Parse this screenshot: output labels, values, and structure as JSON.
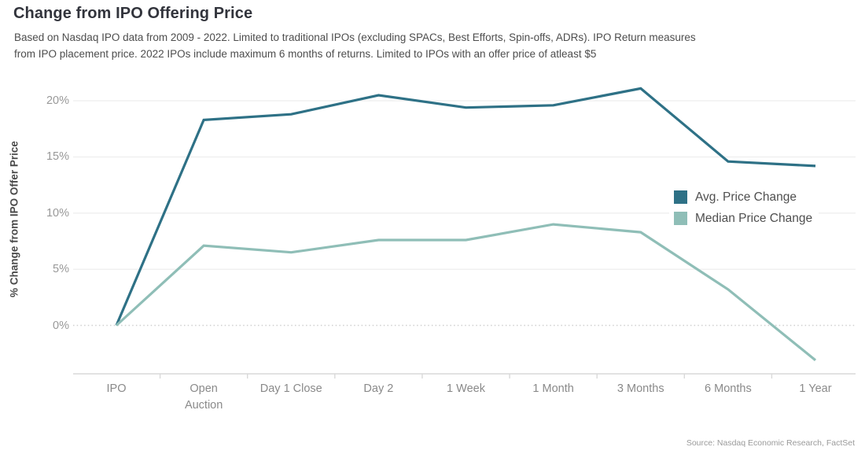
{
  "header": {
    "title": "Change from IPO Offering Price",
    "subtitle_lines": [
      "Based on Nasdaq IPO data from 2009 - 2022. Limited to traditional IPOs (excluding SPACs, Best Efforts, Spin-offs, ADRs). IPO Return measures",
      "from IPO placement price. 2022 IPOs include maximum 6 months of returns. Limited to IPOs with an offer price of atleast $5"
    ]
  },
  "source": "Source: Nasdaq Economic Research, FactSet",
  "colors": {
    "grid": "#efefef",
    "zero_line": "#cfcfcf",
    "axis": "#d9d9d9",
    "avg_line": "#2e7186",
    "median_line": "#8fbeb7"
  },
  "chart_data": {
    "type": "line",
    "title": "Change from IPO Offering Price",
    "ylabel": "% Change from IPO Offer Price",
    "xlabel": "",
    "categories": [
      "IPO",
      "Open Auction",
      "Day 1 Close",
      "Day 2",
      "1 Week",
      "1 Month",
      "3 Months",
      "6 Months",
      "1 Year"
    ],
    "categories_display": [
      "IPO",
      "Open\nAuction",
      "Day 1 Close",
      "Day 2",
      "1 Week",
      "1 Month",
      "3 Months",
      "6 Months",
      "1 Year"
    ],
    "series": [
      {
        "name": "Avg. Price Change",
        "color": "#2e7186",
        "values": [
          0,
          18.3,
          18.8,
          20.5,
          19.4,
          19.6,
          21.1,
          14.6,
          14.2
        ]
      },
      {
        "name": "Median Price Change",
        "color": "#8fbeb7",
        "values": [
          0,
          7.1,
          6.5,
          7.6,
          7.6,
          9.0,
          8.3,
          3.2,
          -3.1
        ]
      }
    ],
    "yticks": [
      0,
      5,
      10,
      15,
      20
    ],
    "ytick_suffix": "%",
    "ylim": [
      -4.5,
      22
    ],
    "grid": "horizontal",
    "zero_line_style": "dotted",
    "legend_position": "inside-right"
  }
}
